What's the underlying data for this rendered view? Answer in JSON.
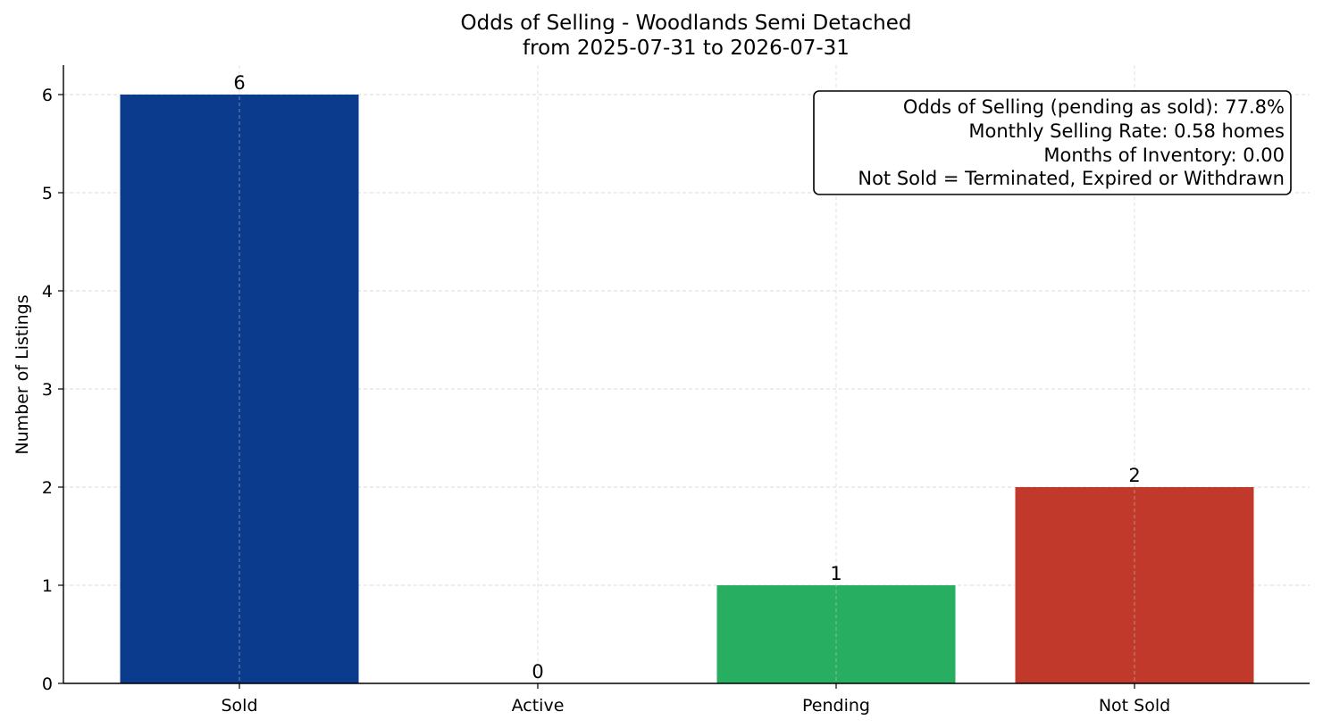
{
  "chart_data": {
    "type": "bar",
    "title": "Odds of Selling - Woodlands Semi Detached",
    "subtitle": "from 2025-07-31 to 2026-07-31",
    "xlabel": "",
    "ylabel": "Number of Listings",
    "categories": [
      "Sold",
      "Active",
      "Pending",
      "Not Sold"
    ],
    "values": [
      6,
      0,
      1,
      2
    ],
    "data_labels": [
      "6",
      "0",
      "1",
      "2"
    ],
    "colors": [
      "#0b3b8c",
      "#1f6fd1",
      "#27ae60",
      "#c0392b"
    ],
    "ylim": [
      0,
      6.3
    ],
    "yticks": [
      0,
      1,
      2,
      3,
      4,
      5,
      6
    ],
    "grid": true,
    "annotation": {
      "placement": "top-right",
      "lines": [
        "Odds of Selling (pending as sold): 77.8%",
        "Monthly Selling Rate: 0.58 homes",
        "Months of Inventory: 0.00",
        "Not Sold = Terminated, Expired or Withdrawn"
      ]
    }
  }
}
